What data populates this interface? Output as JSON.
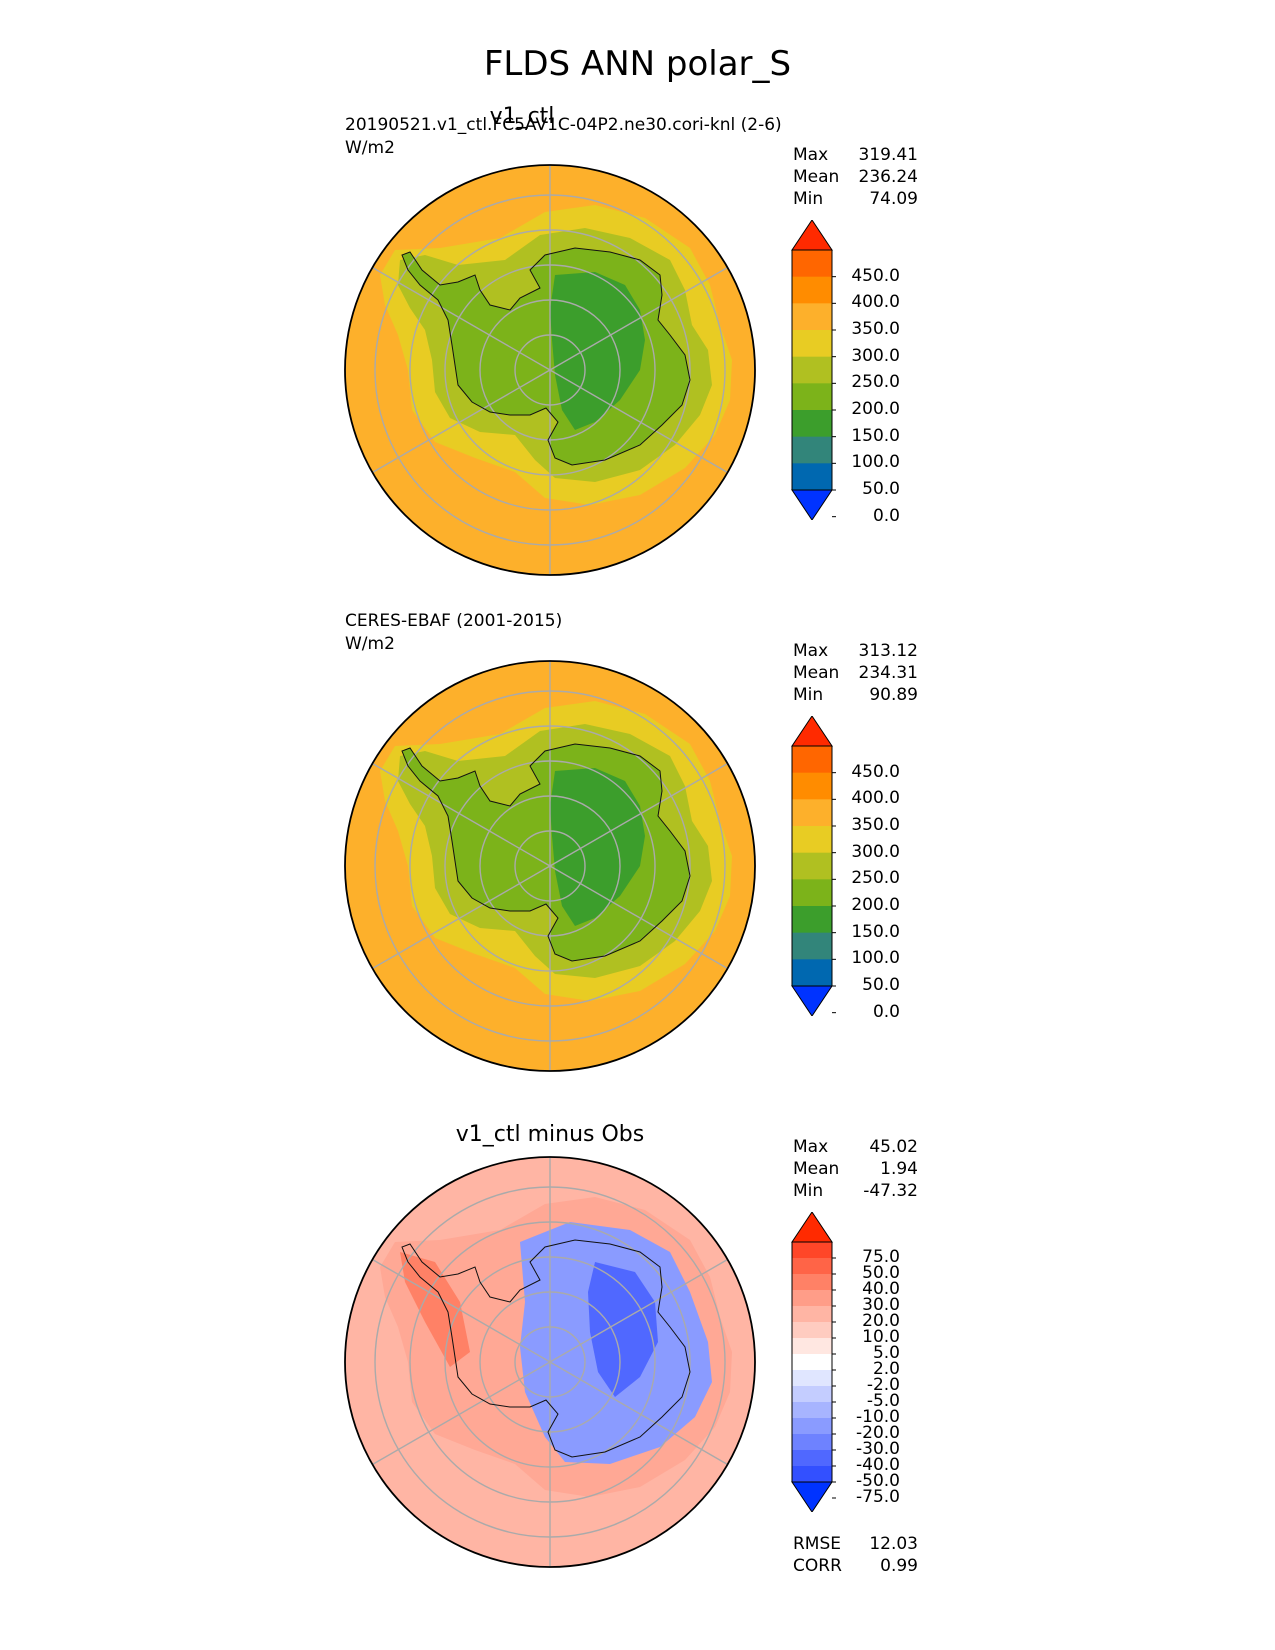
{
  "figure": {
    "title": "FLDS ANN polar_S"
  },
  "panels": [
    {
      "title": "v1_ctl",
      "left_label": "20190521.v1_ctl.FC5AV1C-04P2.ne30.cori-knl (2-6)",
      "units": "W/m2",
      "stats": {
        "max_label": "Max",
        "max": "319.41",
        "mean_label": "Mean",
        "mean": "236.24",
        "min_label": "Min",
        "min": "74.09"
      },
      "colorbar": {
        "tick_labels": [
          "450.0",
          "400.0",
          "350.0",
          "300.0",
          "250.0",
          "200.0",
          "150.0",
          "100.0",
          "50.0",
          "0.0"
        ],
        "colors": [
          "#ff2a00",
          "#ff6600",
          "#ff8c00",
          "#fdb02b",
          "#e8cc23",
          "#b0c021",
          "#7cb31a",
          "#3c9e2c",
          "#32857a",
          "#0068b0",
          "#0033ff"
        ]
      }
    },
    {
      "title": "",
      "left_label": "CERES-EBAF (2001-2015)",
      "units": "W/m2",
      "stats": {
        "max_label": "Max",
        "max": "313.12",
        "mean_label": "Mean",
        "mean": "234.31",
        "min_label": "Min",
        "min": "90.89"
      },
      "colorbar": {
        "tick_labels": [
          "450.0",
          "400.0",
          "350.0",
          "300.0",
          "250.0",
          "200.0",
          "150.0",
          "100.0",
          "50.0",
          "0.0"
        ],
        "colors": [
          "#ff2a00",
          "#ff6600",
          "#ff8c00",
          "#fdb02b",
          "#e8cc23",
          "#b0c021",
          "#7cb31a",
          "#3c9e2c",
          "#32857a",
          "#0068b0",
          "#0033ff"
        ]
      }
    },
    {
      "title": "v1_ctl minus Obs",
      "left_label": "",
      "units": "",
      "stats": {
        "max_label": "Max",
        "max": "45.02",
        "mean_label": "Mean",
        "mean": "1.94",
        "min_label": "Min",
        "min": "-47.32"
      },
      "metrics": {
        "rmse_label": "RMSE",
        "rmse": "12.03",
        "corr_label": "CORR",
        "corr": "0.99"
      },
      "colorbar": {
        "tick_labels": [
          "75.0",
          "50.0",
          "40.0",
          "30.0",
          "20.0",
          "10.0",
          "5.0",
          "2.0",
          "-2.0",
          "-5.0",
          "-10.0",
          "-20.0",
          "-30.0",
          "-40.0",
          "-50.0",
          "-75.0"
        ],
        "colors": [
          "#ff2a00",
          "#ff4628",
          "#ff6447",
          "#ff8166",
          "#ff9d88",
          "#ffb5a4",
          "#ffccc0",
          "#ffe7e1",
          "#ffffff",
          "#e0e6ff",
          "#c4cdff",
          "#a7b4ff",
          "#8a9bff",
          "#6e82ff",
          "#5068ff",
          "#3350ff",
          "#0033ff"
        ]
      }
    }
  ],
  "chart_data": [
    {
      "type": "heatmap",
      "projection": "polar stereographic (south pole)",
      "title": "v1_ctl",
      "variable": "FLDS",
      "season": "ANN",
      "region": "polar_S",
      "units": "W/m2",
      "max": 319.41,
      "mean": 236.24,
      "min": 74.09,
      "levels": [
        0,
        50,
        100,
        150,
        200,
        250,
        300,
        350,
        400,
        450
      ],
      "extend": "both",
      "field": {
        "ocean_outer_ring": 325,
        "ocean_near_coast": 275,
        "antarctic_margin": 225,
        "antarctic_coast_band": 175,
        "east_antarctic_plateau": 125,
        "west_antarctica": 175
      }
    },
    {
      "type": "heatmap",
      "projection": "polar stereographic (south pole)",
      "title": "CERES-EBAF (2001-2015)",
      "units": "W/m2",
      "max": 313.12,
      "mean": 234.31,
      "min": 90.89,
      "levels": [
        0,
        50,
        100,
        150,
        200,
        250,
        300,
        350,
        400,
        450
      ],
      "extend": "both",
      "field": {
        "ocean_outer_ring": 325,
        "ocean_near_coast": 275,
        "antarctic_margin": 225,
        "antarctic_coast_band": 175,
        "east_antarctic_plateau": 125,
        "west_antarctica": 175
      }
    },
    {
      "type": "heatmap",
      "projection": "polar stereographic (south pole)",
      "title": "v1_ctl minus Obs",
      "max": 45.02,
      "mean": 1.94,
      "min": -47.32,
      "rmse": 12.03,
      "corr": 0.99,
      "levels": [
        -75,
        -50,
        -40,
        -30,
        -20,
        -10,
        -5,
        -2,
        2,
        5,
        10,
        20,
        30,
        40,
        50,
        75
      ],
      "extend": "both",
      "field": {
        "southern_ocean": 15,
        "antarctic_peninsula": 35,
        "ross_ice_shelf_sector": 25,
        "east_antarctica": -25,
        "east_antarctic_interior_min": -45
      }
    }
  ]
}
